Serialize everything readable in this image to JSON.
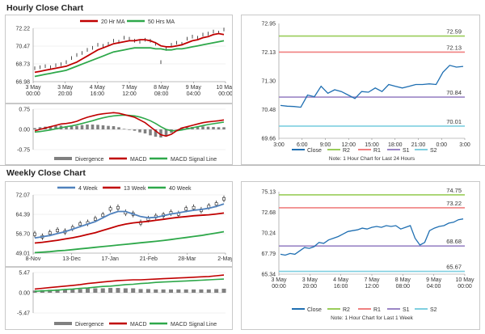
{
  "sections": {
    "hourly": "Hourly Close Chart",
    "weekly": "Weekly Close Chart"
  },
  "colors": {
    "ma_short": "#c00000",
    "ma_long": "#2ea84a",
    "macd": "#c00000",
    "signal": "#2ea84a",
    "divergence": "#808080",
    "close": "#1f6fb2",
    "r2": "#9acd5a",
    "r1": "#f08080",
    "s1": "#9b86c6",
    "s2": "#7fcfe0",
    "price_bar": "#222222",
    "week4": "#4f81bd",
    "week13": "#c00000",
    "week40": "#2ea84a"
  },
  "chart_data": [
    {
      "id": "hourly-price",
      "type": "line",
      "legend": [
        "20 Hr MA",
        "50 Hrs MA"
      ],
      "y_ticks": [
        "72.22",
        "70.47",
        "68.73",
        "66.98"
      ],
      "ylim": [
        66.98,
        72.22
      ],
      "x_ticks": [
        [
          "3 May",
          "00:00"
        ],
        [
          "3 May",
          "20:00"
        ],
        [
          "4 May",
          "16:00"
        ],
        [
          "7 May",
          "12:00"
        ],
        [
          "8 May",
          "08:00"
        ],
        [
          "9 May",
          "04:00"
        ],
        [
          "10 May",
          "00:00"
        ]
      ],
      "series": [
        {
          "name": "Price",
          "values": [
            68.3,
            68.4,
            68.5,
            68.4,
            68.6,
            68.7,
            68.9,
            69.3,
            69.6,
            69.8,
            70.1,
            70.3,
            70.6,
            70.5,
            70.7,
            71.0,
            70.9,
            71.3,
            71.2,
            71.0,
            70.9,
            71.1,
            71.0,
            70.7,
            68.9,
            70.2,
            70.6,
            70.8,
            70.7,
            71.2,
            71.4,
            71.3,
            71.6,
            71.7,
            71.9,
            71.8,
            72.1
          ]
        },
        {
          "name": "20 Hr MA",
          "values": [
            67.9,
            68.0,
            68.1,
            68.2,
            68.3,
            68.4,
            68.5,
            68.7,
            68.9,
            69.2,
            69.5,
            69.8,
            70.1,
            70.3,
            70.5,
            70.7,
            70.8,
            70.9,
            71.0,
            71.0,
            71.1,
            71.1,
            71.0,
            70.8,
            70.5,
            70.4,
            70.4,
            70.5,
            70.6,
            70.8,
            71.0,
            71.1,
            71.3,
            71.4,
            71.6,
            71.7,
            71.6
          ]
        },
        {
          "name": "50 Hrs MA",
          "values": [
            67.5,
            67.6,
            67.7,
            67.8,
            67.9,
            68.0,
            68.1,
            68.3,
            68.5,
            68.7,
            68.9,
            69.1,
            69.3,
            69.5,
            69.7,
            69.9,
            70.0,
            70.1,
            70.2,
            70.3,
            70.3,
            70.3,
            70.3,
            70.2,
            70.2,
            70.1,
            70.1,
            70.2,
            70.2,
            70.3,
            70.4,
            70.5,
            70.6,
            70.7,
            70.8,
            70.9,
            71.0
          ]
        }
      ]
    },
    {
      "id": "hourly-macd",
      "type": "line",
      "y_ticks": [
        "0.75",
        "0.00",
        "-0.75"
      ],
      "ylim": [
        -0.75,
        0.75
      ],
      "legend": [
        "Divergence",
        "MACD",
        "MACD Signal Line"
      ],
      "series": [
        {
          "name": "MACD",
          "values": [
            -0.05,
            0.0,
            0.05,
            0.1,
            0.15,
            0.2,
            0.22,
            0.25,
            0.3,
            0.38,
            0.45,
            0.5,
            0.55,
            0.58,
            0.6,
            0.62,
            0.6,
            0.55,
            0.5,
            0.45,
            0.35,
            0.25,
            0.1,
            -0.05,
            -0.2,
            -0.25,
            -0.18,
            -0.05,
            0.05,
            0.1,
            0.15,
            0.2,
            0.25,
            0.28,
            0.3,
            0.32,
            0.35
          ]
        },
        {
          "name": "MACD Signal Line",
          "values": [
            -0.1,
            -0.08,
            -0.05,
            -0.02,
            0.02,
            0.06,
            0.1,
            0.13,
            0.17,
            0.22,
            0.27,
            0.32,
            0.38,
            0.43,
            0.47,
            0.5,
            0.52,
            0.53,
            0.52,
            0.5,
            0.46,
            0.4,
            0.32,
            0.22,
            0.1,
            0.0,
            -0.05,
            -0.05,
            -0.02,
            0.02,
            0.06,
            0.1,
            0.14,
            0.18,
            0.21,
            0.24,
            0.27
          ]
        },
        {
          "name": "Divergence",
          "values": [
            0.05,
            0.08,
            0.1,
            0.12,
            0.13,
            0.14,
            0.12,
            0.12,
            0.13,
            0.16,
            0.18,
            0.18,
            0.17,
            0.15,
            0.13,
            0.12,
            0.08,
            0.02,
            -0.02,
            -0.05,
            -0.11,
            -0.15,
            -0.22,
            -0.27,
            -0.3,
            -0.25,
            -0.13,
            0.0,
            0.07,
            0.08,
            0.09,
            0.1,
            0.11,
            0.1,
            0.09,
            0.08,
            0.08
          ]
        }
      ]
    },
    {
      "id": "hourly-levels",
      "type": "line",
      "y_ticks": [
        "72.95",
        "72.13",
        "71.30",
        "70.48",
        "69.66"
      ],
      "ylim": [
        69.66,
        72.95
      ],
      "x_ticks": [
        "3:00",
        "6:00",
        "9:00",
        "12:00",
        "15:00",
        "18:00",
        "21:00",
        "0:00",
        "3:00"
      ],
      "levels": [
        {
          "name": "R2",
          "value": 72.59,
          "label": "72.59"
        },
        {
          "name": "R1",
          "value": 72.13,
          "label": "72.13"
        },
        {
          "name": "S1",
          "value": 70.84,
          "label": "70.84"
        },
        {
          "name": "S2",
          "value": 70.01,
          "label": "70.01"
        }
      ],
      "series": [
        {
          "name": "Close",
          "values": [
            70.6,
            70.58,
            70.57,
            70.55,
            70.9,
            70.85,
            71.15,
            70.95,
            71.05,
            71.0,
            70.9,
            70.8,
            71.0,
            70.98,
            71.1,
            71.0,
            71.2,
            71.15,
            71.1,
            71.15,
            71.2,
            71.2,
            71.22,
            71.2,
            71.55,
            71.75,
            71.7,
            71.72
          ]
        }
      ],
      "legend": [
        "Close",
        "R2",
        "R1",
        "S1",
        "S2"
      ],
      "note": "Note: 1 Hour Chart for Last 24 Hours"
    },
    {
      "id": "weekly-price",
      "type": "line",
      "legend": [
        "4 Week",
        "13 Week",
        "40 Week"
      ],
      "y_ticks": [
        "72.07",
        "64.39",
        "56.70",
        "49.01"
      ],
      "ylim": [
        49.01,
        72.07
      ],
      "x_ticks": [
        "8-Nov",
        "13-Dec",
        "17-Jan",
        "21-Feb",
        "28-Mar",
        "2-May"
      ],
      "series": [
        {
          "name": "Price",
          "values": [
            56.5,
            55.5,
            57.0,
            58.0,
            57.5,
            59.0,
            60.5,
            61.0,
            62.5,
            64.0,
            66.5,
            67.0,
            65.0,
            64.5,
            61.0,
            62.5,
            63.5,
            64.0,
            65.0,
            64.5,
            66.5,
            67.0,
            66.0,
            67.5,
            68.5,
            70.5
          ]
        },
        {
          "name": "4 Week",
          "values": [
            55.0,
            55.5,
            56.0,
            56.8,
            57.5,
            58.5,
            59.5,
            60.5,
            61.5,
            63.0,
            64.5,
            65.5,
            65.5,
            64.5,
            63.5,
            63.0,
            63.2,
            63.8,
            64.5,
            65.0,
            65.5,
            66.0,
            66.3,
            66.8,
            67.5,
            68.5
          ]
        },
        {
          "name": "13 Week",
          "values": [
            53.0,
            53.3,
            53.7,
            54.1,
            54.6,
            55.1,
            55.7,
            56.4,
            57.1,
            58.0,
            58.9,
            59.8,
            60.5,
            61.0,
            61.3,
            61.6,
            62.0,
            62.4,
            62.8,
            63.2,
            63.5,
            63.8,
            64.0,
            64.2,
            64.5,
            64.9
          ]
        },
        {
          "name": "40 Week",
          "values": [
            49.2,
            49.4,
            49.6,
            49.9,
            50.1,
            50.4,
            50.7,
            51.0,
            51.3,
            51.6,
            51.9,
            52.2,
            52.5,
            52.8,
            53.1,
            53.4,
            53.7,
            54.0,
            54.4,
            54.8,
            55.2,
            55.6,
            56.0,
            56.5,
            57.0,
            57.5
          ]
        }
      ]
    },
    {
      "id": "weekly-macd",
      "type": "line",
      "y_ticks": [
        "5.47",
        "0.00",
        "-5.47"
      ],
      "ylim": [
        -5.47,
        5.47
      ],
      "legend": [
        "Divergence",
        "MACD",
        "MACD Signal Line"
      ],
      "series": [
        {
          "name": "MACD",
          "values": [
            1.0,
            1.2,
            1.4,
            1.6,
            1.8,
            2.0,
            2.2,
            2.5,
            2.7,
            2.9,
            3.1,
            3.3,
            3.4,
            3.5,
            3.5,
            3.6,
            3.7,
            3.8,
            3.9,
            4.0,
            4.1,
            4.2,
            4.3,
            4.4,
            4.6,
            4.8
          ]
        },
        {
          "name": "MACD Signal Line",
          "values": [
            0.4,
            0.5,
            0.6,
            0.7,
            0.9,
            1.0,
            1.2,
            1.3,
            1.5,
            1.7,
            1.8,
            2.0,
            2.2,
            2.3,
            2.5,
            2.6,
            2.8,
            2.9,
            3.0,
            3.1,
            3.2,
            3.3,
            3.4,
            3.5,
            3.6,
            3.7
          ]
        },
        {
          "name": "Divergence",
          "values": [
            0.6,
            0.7,
            0.8,
            0.9,
            0.9,
            1.0,
            1.0,
            1.2,
            1.2,
            1.2,
            1.3,
            1.3,
            1.2,
            1.2,
            1.0,
            1.0,
            0.9,
            0.9,
            0.9,
            0.9,
            0.9,
            0.9,
            0.9,
            0.9,
            1.0,
            1.1
          ]
        }
      ]
    },
    {
      "id": "weekly-levels",
      "type": "line",
      "y_ticks": [
        "75.13",
        "72.68",
        "70.24",
        "67.79",
        "65.34"
      ],
      "ylim": [
        65.34,
        75.13
      ],
      "x_ticks": [
        [
          "3 May",
          "00:00"
        ],
        [
          "3 May",
          "20:00"
        ],
        [
          "4 May",
          "16:00"
        ],
        [
          "7 May",
          "12:00"
        ],
        [
          "8 May",
          "08:00"
        ],
        [
          "9 May",
          "04:00"
        ],
        [
          "10 May",
          "00:00"
        ]
      ],
      "levels": [
        {
          "name": "R2",
          "value": 74.75,
          "label": "74.75"
        },
        {
          "name": "R1",
          "value": 73.22,
          "label": "73.22"
        },
        {
          "name": "S1",
          "value": 68.68,
          "label": "68.68"
        },
        {
          "name": "S2",
          "value": 65.67,
          "label": "65.67"
        }
      ],
      "series": [
        {
          "name": "Close",
          "values": [
            67.7,
            67.6,
            67.8,
            67.7,
            68.1,
            68.5,
            68.4,
            68.6,
            69.1,
            69.0,
            69.4,
            69.6,
            69.8,
            70.1,
            70.4,
            70.5,
            70.6,
            70.8,
            70.7,
            70.9,
            71.0,
            70.9,
            71.1,
            71.0,
            71.1,
            70.7,
            70.9,
            71.1,
            69.6,
            68.8,
            69.1,
            70.5,
            70.8,
            71.0,
            71.1,
            71.4,
            71.5,
            71.8,
            71.9
          ]
        }
      ],
      "legend": [
        "Close",
        "R2",
        "R1",
        "S1",
        "S2"
      ],
      "note": "Note: 1 Hour Chart for Last 1 Week"
    }
  ]
}
